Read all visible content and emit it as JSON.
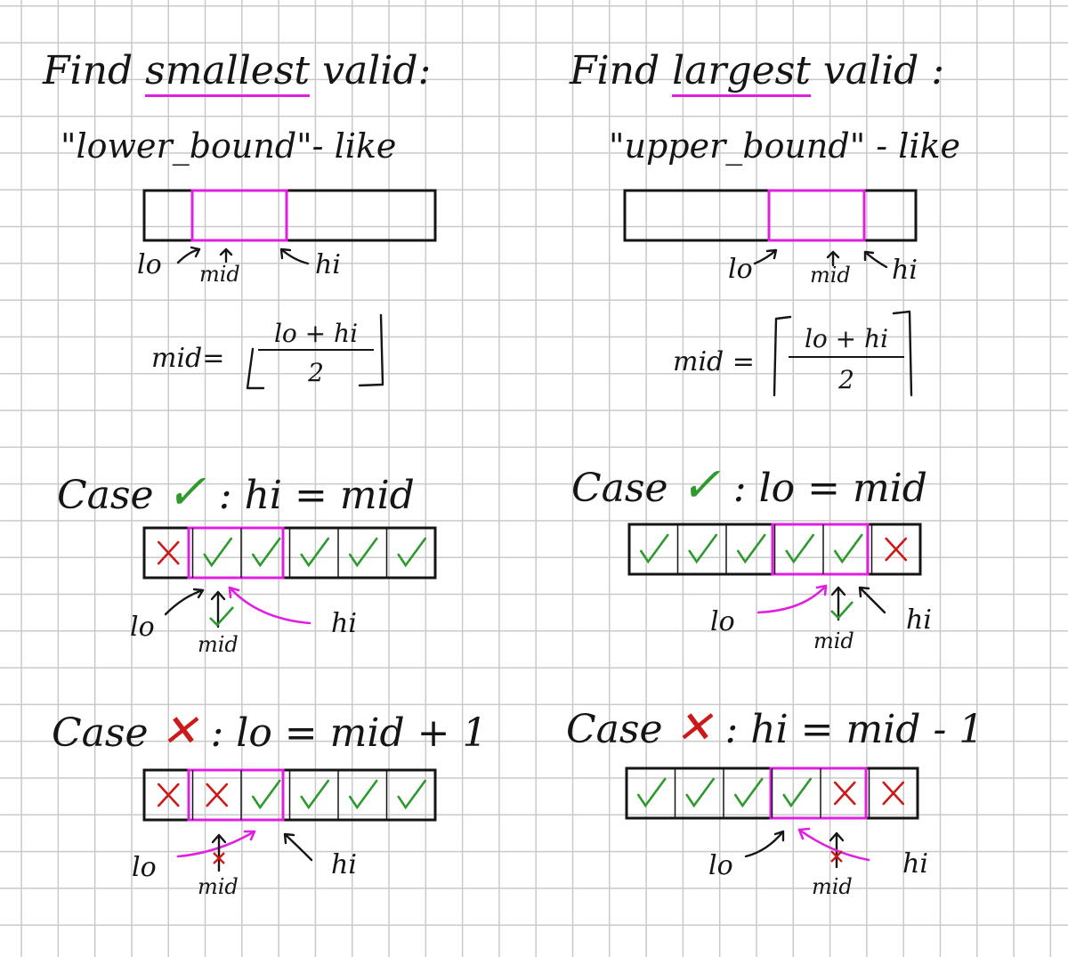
{
  "left": {
    "title_prefix": "Find",
    "title_highlight": "smallest",
    "title_suffix": "valid:",
    "subtitle": "\"lower_bound\"- like",
    "diagram_labels": {
      "lo": "lo",
      "mid": "mid",
      "hi": "hi"
    },
    "formula": {
      "lhs": "mid=",
      "numerator": "lo + hi",
      "denominator": "2",
      "rounding": "floor"
    },
    "case_valid": {
      "prefix": "Case",
      "symbol": "✓",
      "rule": ": hi = mid",
      "cells": [
        "x",
        "check",
        "check",
        "check",
        "check",
        "check"
      ],
      "labels": {
        "lo": "lo",
        "mid": "mid",
        "hi": "hi"
      }
    },
    "case_invalid": {
      "prefix": "Case",
      "symbol": "✕",
      "rule": ": lo = mid + 1",
      "cells": [
        "x",
        "x",
        "check",
        "check",
        "check",
        "check"
      ],
      "labels": {
        "lo": "lo",
        "mid": "mid",
        "hi": "hi"
      }
    }
  },
  "right": {
    "title_prefix": "Find",
    "title_highlight": "largest",
    "title_suffix": "valid :",
    "subtitle": "\"upper_bound\" - like",
    "diagram_labels": {
      "lo": "lo",
      "mid": "mid",
      "hi": "hi"
    },
    "formula": {
      "lhs": "mid =",
      "numerator": "lo + hi",
      "denominator": "2",
      "rounding": "ceil"
    },
    "case_valid": {
      "prefix": "Case",
      "symbol": "✓",
      "rule": ": lo = mid",
      "cells": [
        "check",
        "check",
        "check",
        "check",
        "check",
        "x"
      ],
      "labels": {
        "lo": "lo",
        "mid": "mid",
        "hi": "hi"
      }
    },
    "case_invalid": {
      "prefix": "Case",
      "symbol": "✕",
      "rule": ": hi = mid - 1",
      "cells": [
        "check",
        "check",
        "check",
        "check",
        "x",
        "x"
      ],
      "labels": {
        "lo": "lo",
        "mid": "mid",
        "hi": "hi"
      }
    }
  },
  "colors": {
    "ink": "#151515",
    "highlight": "#e020e0",
    "valid": "#2e9a2e",
    "invalid": "#cc1a1a",
    "grid": "#c9c9c9"
  }
}
